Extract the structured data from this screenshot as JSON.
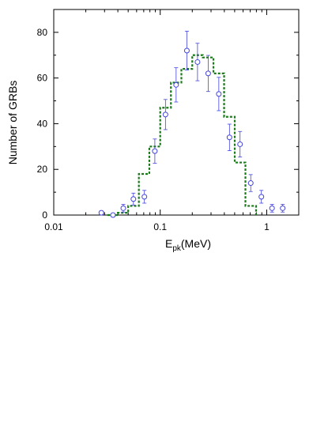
{
  "chart_data": {
    "type": "scatter",
    "title": "",
    "xlabel": {
      "main": "E",
      "sub": "pk",
      "suffix": "(MeV)"
    },
    "ylabel": "Number of GRBs",
    "xscale": "log",
    "xlim": [
      0.01,
      2.0
    ],
    "ylim": [
      0,
      90
    ],
    "grid": false,
    "legend": "none",
    "x_ticks": [
      {
        "value": 0.01,
        "label": "0.01"
      },
      {
        "value": 0.1,
        "label": "0.1"
      },
      {
        "value": 1,
        "label": "1"
      }
    ],
    "y_ticks": [
      {
        "value": 0,
        "label": "0"
      },
      {
        "value": 20,
        "label": "20"
      },
      {
        "value": 40,
        "label": "40"
      },
      {
        "value": 60,
        "label": "60"
      },
      {
        "value": 80,
        "label": "80"
      }
    ],
    "series": [
      {
        "kind": "points_with_errorbars",
        "color": "#4444dd",
        "points": [
          {
            "x": 0.028,
            "y": 1,
            "err": 0.8
          },
          {
            "x": 0.036,
            "y": 0,
            "err": 0.5
          },
          {
            "x": 0.045,
            "y": 3,
            "err": 1.7
          },
          {
            "x": 0.056,
            "y": 7,
            "err": 2.6
          },
          {
            "x": 0.071,
            "y": 8,
            "err": 2.8
          },
          {
            "x": 0.089,
            "y": 28,
            "err": 5.3
          },
          {
            "x": 0.112,
            "y": 44,
            "err": 6.6
          },
          {
            "x": 0.141,
            "y": 57,
            "err": 7.5
          },
          {
            "x": 0.178,
            "y": 72,
            "err": 8.5
          },
          {
            "x": 0.224,
            "y": 67,
            "err": 8.2
          },
          {
            "x": 0.282,
            "y": 62,
            "err": 7.9
          },
          {
            "x": 0.355,
            "y": 53,
            "err": 7.3
          },
          {
            "x": 0.447,
            "y": 34,
            "err": 5.8
          },
          {
            "x": 0.562,
            "y": 31,
            "err": 5.6
          },
          {
            "x": 0.708,
            "y": 14,
            "err": 3.7
          },
          {
            "x": 0.891,
            "y": 8,
            "err": 2.8
          },
          {
            "x": 1.122,
            "y": 3,
            "err": 1.7
          },
          {
            "x": 1.413,
            "y": 3,
            "err": 1.7
          }
        ]
      },
      {
        "kind": "step",
        "color": "#1a7a1a",
        "edges": [
          0.032,
          0.04,
          0.05,
          0.063,
          0.079,
          0.1,
          0.126,
          0.158,
          0.2,
          0.251,
          0.316,
          0.398,
          0.501,
          0.631,
          0.794
        ],
        "values": [
          0,
          1,
          4,
          18,
          30,
          47,
          58,
          64,
          70,
          69,
          62,
          43,
          23,
          4
        ]
      }
    ]
  }
}
